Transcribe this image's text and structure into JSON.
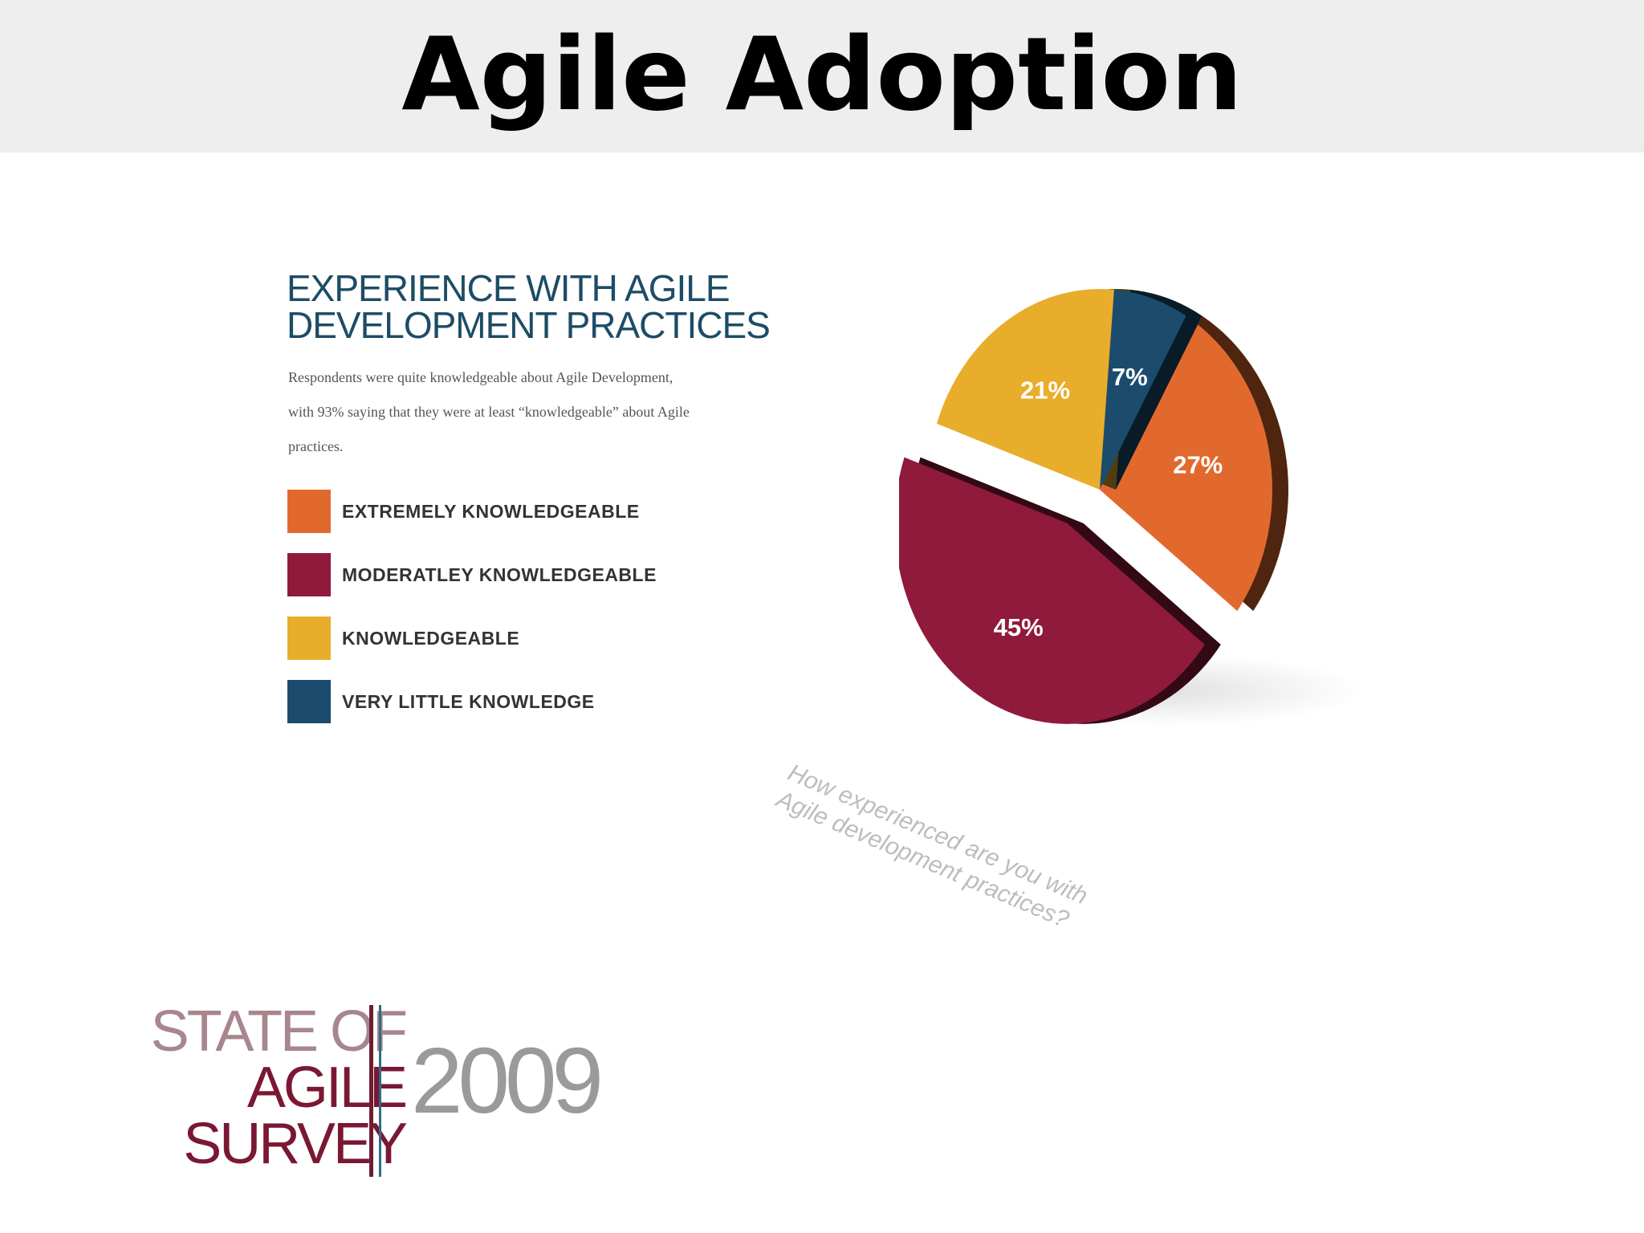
{
  "slide": {
    "title": "Agile Adoption"
  },
  "panel": {
    "title_lines": [
      "EXPERIENCE WITH AGILE",
      "DEVELOPMENT PRACTICES"
    ],
    "description_lines": [
      "Respondents were quite knowledgeable about Agile Development,",
      "with 93% saying that they were at least “knowledgeable” about Agile",
      "practices."
    ]
  },
  "chart_data": {
    "type": "pie",
    "title": "",
    "question": [
      "How experienced are you with",
      "Agile development practices?"
    ],
    "legend_placement": "left",
    "slices": [
      {
        "name": "EXTREMELY KNOWLEDGEABLE",
        "value": 27,
        "label": "27%",
        "color": "#e2692e"
      },
      {
        "name": "MODERATLEY KNOWLEDGEABLE",
        "value": 45,
        "label": "45%",
        "color": "#8f1a3c"
      },
      {
        "name": "KNOWLEDGEABLE",
        "value": 21,
        "label": "21%",
        "color": "#e8ad2a"
      },
      {
        "name": "VERY LITTLE KNOWLEDGE",
        "value": 7,
        "label": "7%",
        "color": "#1b4c6e"
      }
    ],
    "exploded": "MODERATLEY KNOWLEDGEABLE"
  },
  "logo": {
    "line1": "STATE OF",
    "line2": "AGILE",
    "line3": "SURVEY",
    "year": "2009",
    "colors": {
      "primary": "#7a1833",
      "secondary": "#2e6c88"
    }
  }
}
